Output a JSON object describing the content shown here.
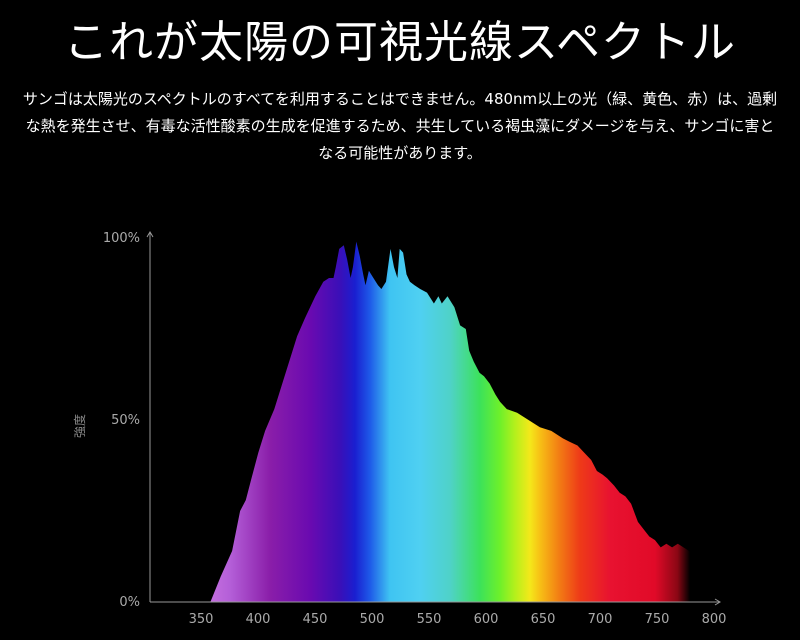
{
  "title": "これが太陽の可視光線スペクトル",
  "description": "サンゴは太陽光のスペクトルのすべてを利用することはできません。480nm以上の光（緑、黄色、赤）は、過剰な熱を発生させ、有毒な活性酸素の生成を促進するため、共生している褐虫藻にダメージを与え、サンゴに害となる可能性があります。",
  "chart_data": {
    "type": "area",
    "title": "",
    "xlabel": "",
    "ylabel": "強度",
    "xlim": [
      300,
      800
    ],
    "ylim": [
      0,
      100
    ],
    "x_ticks": [
      350,
      400,
      450,
      500,
      550,
      600,
      650,
      700,
      750,
      800
    ],
    "y_ticks": [
      {
        "value": 0,
        "label": "0%"
      },
      {
        "value": 50,
        "label": "50%"
      },
      {
        "value": 100,
        "label": "100%"
      }
    ],
    "grid": false,
    "fill": "visible-spectrum-gradient",
    "x": [
      353,
      362,
      372,
      379,
      384,
      389,
      395,
      401,
      409,
      417,
      424,
      429,
      436,
      445,
      452,
      457,
      461,
      463,
      466,
      470,
      473,
      476,
      478,
      481,
      484,
      487,
      489,
      492,
      496,
      500,
      503,
      507,
      511,
      514,
      517,
      519,
      522,
      525,
      528,
      532,
      537,
      543,
      549,
      553,
      556,
      561,
      567,
      572,
      577,
      580,
      584,
      589,
      593,
      598,
      603,
      607,
      613,
      622,
      632,
      642,
      652,
      662,
      668,
      675,
      681,
      687,
      692,
      697,
      701,
      707,
      712,
      717,
      722,
      728,
      733,
      738,
      743,
      748,
      753,
      758,
      763,
      768,
      773,
      777
    ],
    "values": [
      0,
      7,
      14,
      25,
      28,
      34,
      41,
      47,
      53,
      61,
      68,
      73,
      78,
      84,
      88,
      89,
      89,
      92,
      97,
      98,
      94,
      89,
      92,
      99,
      95,
      90,
      87,
      91,
      89,
      87,
      86,
      88,
      97,
      92,
      89,
      97,
      96,
      90,
      88,
      87,
      86,
      85,
      82,
      84,
      82,
      84,
      81,
      76,
      75,
      69,
      66,
      63,
      62,
      60,
      57,
      55,
      53,
      52,
      50,
      48,
      47,
      45,
      44,
      43,
      41,
      39,
      36,
      35,
      34,
      32,
      30,
      29,
      27,
      22,
      20,
      18,
      17,
      15,
      16,
      15,
      16,
      15,
      14,
      13
    ]
  }
}
